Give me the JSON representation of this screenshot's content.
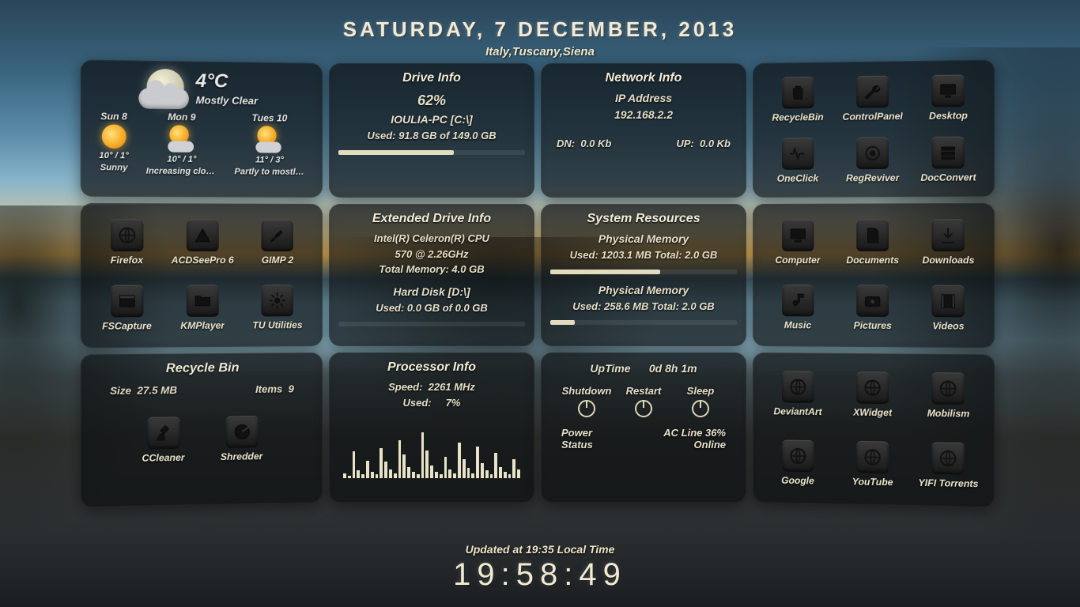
{
  "header": {
    "date": "SATURDAY, 7 DECEMBER, 2013",
    "location": "Italy,Tuscany,Siena"
  },
  "footer": {
    "updated": "Updated at 19:35 Local Time",
    "clock": "19:58:49"
  },
  "weather": {
    "current_temp": "4°C",
    "current_cond": "Mostly Clear",
    "days": [
      {
        "name": "Sun 8",
        "hi_lo": "10° / 1°",
        "cond": "Sunny",
        "icon": "sun"
      },
      {
        "name": "Mon 9",
        "hi_lo": "10° / 1°",
        "cond": "Increasing clou…",
        "icon": "suncloud"
      },
      {
        "name": "Tues 10",
        "hi_lo": "11° / 3°",
        "cond": "Partly to mostly…",
        "icon": "suncloud"
      }
    ]
  },
  "drive": {
    "title": "Drive Info",
    "percent": "62%",
    "name": "IOULIA-PC [C:\\]",
    "used": "Used: 91.8 GB of 149.0 GB",
    "bar_pct": 62
  },
  "network": {
    "title": "Network Info",
    "ip_label": "IP Address",
    "ip": "192.168.2.2",
    "dn_label": "DN:",
    "dn": "0.0 Kb",
    "up_label": "UP:",
    "up": "0.0 Kb"
  },
  "apps1": {
    "items": [
      {
        "label": "RecycleBin",
        "icon": "trash"
      },
      {
        "label": "ControlPanel",
        "icon": "wrench"
      },
      {
        "label": "Desktop",
        "icon": "monitor"
      },
      {
        "label": "OneClick",
        "icon": "pulse"
      },
      {
        "label": "RegReviver",
        "icon": "target"
      },
      {
        "label": "DocConvert",
        "icon": "stack"
      }
    ]
  },
  "apps2": {
    "items": [
      {
        "label": "Firefox",
        "icon": "globe"
      },
      {
        "label": "ACDSeePro 6",
        "icon": "triangle"
      },
      {
        "label": "GIMP 2",
        "icon": "brush"
      },
      {
        "label": "FSCapture",
        "icon": "window"
      },
      {
        "label": "KMPlayer",
        "icon": "folder"
      },
      {
        "label": "TU Utilities",
        "icon": "gear"
      }
    ]
  },
  "ext": {
    "title": "Extended Drive Info",
    "cpu1": "Intel(R) Celeron(R) CPU",
    "cpu2": "570  @ 2.26GHz",
    "mem": "Total Memory: 4.0 GB",
    "hd_label": "Hard Disk [D:\\]",
    "hd_used": "Used: 0.0 GB of 0.0 GB",
    "hd_bar_pct": 0
  },
  "sys": {
    "title": "System Resources",
    "m1_label": "Physical Memory",
    "m1_line": "Used: 1203.1 MB     Total: 2.0 GB",
    "m1_pct": 59,
    "m2_label": "Physical Memory",
    "m2_line": "Used: 258.6 MB     Total: 2.0 GB",
    "m2_pct": 13
  },
  "folders": {
    "items": [
      {
        "label": "Computer",
        "icon": "pc"
      },
      {
        "label": "Documents",
        "icon": "doc"
      },
      {
        "label": "Downloads",
        "icon": "down"
      },
      {
        "label": "Music",
        "icon": "note"
      },
      {
        "label": "Pictures",
        "icon": "camera"
      },
      {
        "label": "Videos",
        "icon": "film"
      }
    ]
  },
  "recycle": {
    "title": "Recycle Bin",
    "size_label": "Size",
    "size": "27.5 MB",
    "items_label": "Items",
    "items": "9",
    "tools": [
      {
        "label": "CCleaner",
        "icon": "broom"
      },
      {
        "label": "Shredder",
        "icon": "shred"
      }
    ]
  },
  "cpu": {
    "title": "Processor Info",
    "speed_label": "Speed:",
    "speed": "2261 MHz",
    "used_label": "Used:",
    "used": "7%",
    "spark": [
      8,
      4,
      42,
      12,
      6,
      28,
      10,
      6,
      48,
      26,
      14,
      8,
      60,
      38,
      18,
      10,
      6,
      72,
      44,
      20,
      10,
      6,
      34,
      14,
      8,
      56,
      30,
      16,
      8,
      50,
      24,
      12,
      6,
      40,
      18,
      10,
      6,
      30,
      14
    ]
  },
  "uptime": {
    "title": "UpTime",
    "value": "0d 8h 1m",
    "shutdown": "Shutdown",
    "restart": "Restart",
    "sleep": "Sleep",
    "pwr_lbl1": "Power",
    "pwr_lbl2": "Status",
    "ac1": "AC Line 36%",
    "ac2": "Online"
  },
  "links": {
    "items": [
      {
        "label": "DeviantArt",
        "icon": "globe"
      },
      {
        "label": "XWidget",
        "icon": "globe"
      },
      {
        "label": "Mobilism",
        "icon": "globe"
      },
      {
        "label": "Google",
        "icon": "globe"
      },
      {
        "label": "YouTube",
        "icon": "globe"
      },
      {
        "label": "YIFI Torrents",
        "icon": "globe"
      }
    ]
  },
  "style": {
    "panel_bg": "rgba(12,14,16,.70)",
    "text_color": "#e8e2c8",
    "bar_fill": "#e2dbbe"
  }
}
